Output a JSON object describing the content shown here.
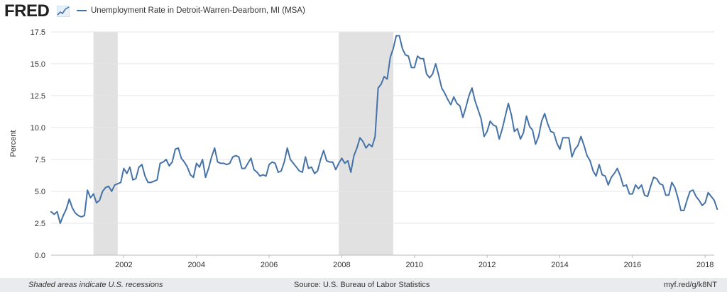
{
  "header": {
    "logo_text": "FRED",
    "logo_icon": "trend-line-icon"
  },
  "colors": {
    "series": "#4572a7",
    "recession": "#e1e1e1",
    "grid": "#e6e6e6",
    "footer_bg": "#e9ebee"
  },
  "chart_data": {
    "type": "line",
    "title": "",
    "xlabel": "",
    "ylabel": "Percent",
    "ylim": [
      0,
      17.5
    ],
    "xlim": [
      "2000-01",
      "2018-04"
    ],
    "y_ticks": [
      "0.0",
      "2.5",
      "5.0",
      "7.5",
      "10.0",
      "12.5",
      "15.0",
      "17.5"
    ],
    "x_ticks": [
      "2002",
      "2004",
      "2006",
      "2008",
      "2010",
      "2012",
      "2014",
      "2016",
      "2018"
    ],
    "grid": "horizontal",
    "legend": "top-left",
    "recessions": [
      {
        "start": "2001-03",
        "end": "2001-11"
      },
      {
        "start": "2007-12",
        "end": "2009-06"
      }
    ],
    "series": [
      {
        "name": "Unemployment Rate in Detroit-Warren-Dearborn, MI (MSA)",
        "start": "2000-01",
        "frequency": "monthly",
        "values": [
          3.4,
          3.2,
          3.4,
          2.5,
          3.1,
          3.6,
          4.4,
          3.7,
          3.3,
          3.1,
          3.0,
          3.1,
          5.1,
          4.5,
          4.8,
          4.1,
          4.3,
          5.0,
          5.3,
          5.4,
          5.0,
          5.5,
          5.6,
          5.7,
          6.8,
          6.4,
          6.9,
          5.9,
          6.0,
          6.9,
          7.1,
          6.2,
          5.7,
          5.7,
          5.8,
          5.9,
          7.2,
          7.3,
          7.5,
          7.0,
          7.3,
          8.3,
          8.4,
          7.6,
          7.3,
          6.9,
          6.3,
          6.1,
          7.2,
          6.9,
          7.5,
          6.1,
          6.8,
          7.7,
          8.4,
          7.3,
          7.2,
          7.2,
          7.1,
          7.2,
          7.7,
          7.8,
          7.7,
          6.8,
          6.8,
          7.2,
          7.6,
          6.7,
          6.5,
          6.2,
          6.3,
          6.2,
          7.1,
          7.3,
          7.2,
          6.5,
          6.6,
          7.3,
          8.4,
          7.5,
          7.2,
          6.9,
          6.6,
          6.5,
          7.7,
          6.8,
          6.9,
          6.4,
          6.6,
          7.5,
          8.2,
          7.4,
          7.3,
          7.3,
          6.7,
          7.2,
          7.6,
          7.2,
          7.4,
          6.5,
          7.8,
          8.4,
          9.2,
          8.9,
          8.4,
          8.7,
          8.5,
          9.3,
          13.1,
          13.4,
          14.0,
          13.8,
          15.5,
          16.2,
          17.2,
          17.2,
          16.2,
          15.7,
          15.6,
          14.7,
          14.7,
          15.6,
          15.4,
          15.4,
          14.2,
          13.9,
          14.2,
          15.0,
          14.1,
          13.1,
          12.7,
          12.2,
          11.8,
          12.4,
          11.9,
          11.7,
          10.8,
          11.6,
          12.5,
          13.1,
          12.1,
          11.4,
          10.7,
          9.3,
          9.7,
          10.5,
          10.2,
          10.1,
          9.1,
          9.9,
          10.9,
          11.9,
          11.0,
          9.7,
          9.9,
          9.1,
          9.6,
          10.9,
          10.1,
          9.8,
          8.7,
          9.3,
          10.5,
          11.1,
          10.3,
          9.7,
          9.6,
          8.8,
          8.3,
          9.2,
          9.2,
          9.2,
          7.7,
          8.3,
          8.6,
          9.3,
          8.6,
          7.8,
          7.4,
          6.6,
          6.2,
          7.1,
          6.3,
          6.2,
          5.5,
          6.1,
          6.4,
          6.8,
          6.2,
          5.4,
          5.5,
          4.8,
          4.8,
          5.5,
          5.2,
          5.5,
          4.7,
          4.6,
          5.4,
          6.1,
          6.0,
          5.6,
          5.5,
          4.7,
          4.7,
          5.7,
          5.3,
          4.5,
          3.5,
          3.5,
          4.3,
          5.0,
          5.1,
          4.6,
          4.3,
          3.9,
          4.1,
          4.9,
          4.6,
          4.3,
          3.6
        ]
      }
    ]
  },
  "footer": {
    "note": "Shaded areas indicate U.S. recessions",
    "source": "Source: U.S. Bureau of Labor Statistics",
    "link": "myf.red/g/k8NT"
  }
}
